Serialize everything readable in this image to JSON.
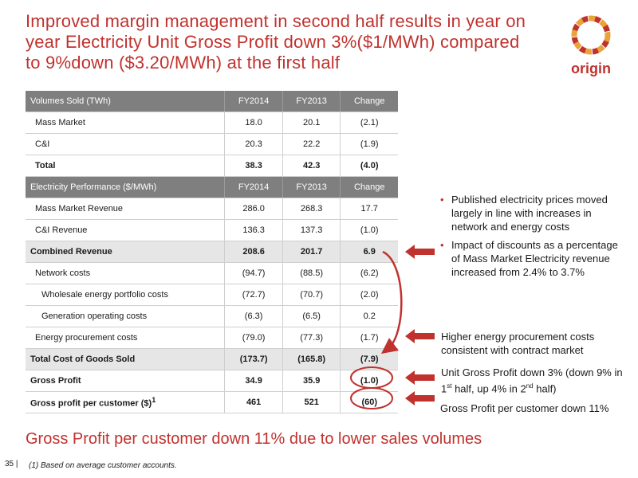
{
  "title": "Improved margin management in second half results in year on year Electricity Unit Gross Profit down 3%($1/MWh) compared to 9%down ($3.20/MWh) at the first half",
  "logo": {
    "text": "origin",
    "colors": [
      "#e8a33a",
      "#d9662b",
      "#c0322e"
    ]
  },
  "colors": {
    "accent": "#c0322e",
    "header_bg": "#7f7f7f",
    "row_shade": "#e6e6e6"
  },
  "table": {
    "rows": [
      {
        "cells": [
          "Volumes Sold (TWh)",
          "FY2014",
          "FY2013",
          "Change"
        ]
      },
      {
        "cells": [
          "Mass Market",
          "18.0",
          "20.1",
          "(2.1)"
        ]
      },
      {
        "cells": [
          "C&I",
          "20.3",
          "22.2",
          "(1.9)"
        ]
      },
      {
        "cells": [
          "Total",
          "38.3",
          "42.3",
          "(4.0)"
        ]
      },
      {
        "cells": [
          "Electricity Performance ($/MWh)",
          "FY2014",
          "FY2013",
          "Change"
        ]
      },
      {
        "cells": [
          "Mass Market Revenue",
          "286.0",
          "268.3",
          "17.7"
        ]
      },
      {
        "cells": [
          "C&I Revenue",
          "136.3",
          "137.3",
          "(1.0)"
        ]
      },
      {
        "cells": [
          "Combined Revenue",
          "208.6",
          "201.7",
          "6.9"
        ]
      },
      {
        "cells": [
          "Network costs",
          "(94.7)",
          "(88.5)",
          "(6.2)"
        ]
      },
      {
        "cells": [
          "Wholesale energy portfolio costs",
          "(72.7)",
          "(70.7)",
          "(2.0)"
        ]
      },
      {
        "cells": [
          "Generation operating costs",
          "(6.3)",
          "(6.5)",
          "0.2"
        ]
      },
      {
        "cells": [
          "Energy procurement costs",
          "(79.0)",
          "(77.3)",
          "(1.7)"
        ]
      },
      {
        "cells": [
          "Total Cost of Goods Sold",
          "(173.7)",
          "(165.8)",
          "(7.9)"
        ]
      },
      {
        "cells": [
          "Gross Profit",
          "34.9",
          "35.9",
          "(1.0)"
        ]
      },
      {
        "cells": [
          "Gross profit per customer ($)",
          "461",
          "521",
          "(60)"
        ]
      }
    ],
    "gp_customer_footnote_mark": "1"
  },
  "bullets": [
    "Published electricity prices moved largely in line with increases in network and energy costs",
    "Impact of discounts as a percentage of Mass Market Electricity revenue increased from 2.4% to 3.7%"
  ],
  "notes": {
    "procurement": "Higher energy procurement costs consistent with contract market",
    "unit_gp": {
      "part1": "Unit Gross Profit down 3% (down 9% in 1",
      "sup1": "st",
      "part2": " half, up 4% in 2",
      "sup2": "nd",
      "part3": " half)"
    },
    "gp_customer": "Gross Profit per customer down 11%"
  },
  "bottom_title": "Gross Profit per customer down 11% due to lower sales volumes",
  "footer": {
    "page": "35 |",
    "footnote": "(1)  Based on average customer accounts."
  }
}
